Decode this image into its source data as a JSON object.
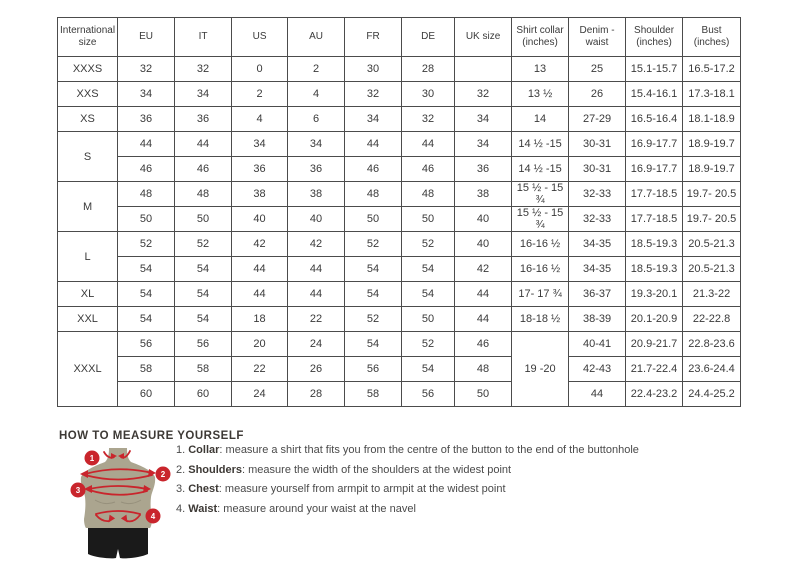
{
  "colors": {
    "accent_red": "#c9252c",
    "torso": "#aba58f",
    "shorts": "#1a1a1a",
    "table_border": "#4c4c4c",
    "text": "#3a3a3a"
  },
  "size_table": {
    "headers": [
      "International size",
      "EU",
      "IT",
      "US",
      "AU",
      "FR",
      "DE",
      "UK size",
      "Shirt collar (inches)",
      "Denim - waist",
      "Shoulder (inches)",
      "Bust (inches)"
    ],
    "groups": [
      {
        "label": "XXXS",
        "rows": [
          [
            "32",
            "32",
            "0",
            "2",
            "30",
            "28",
            "",
            "13",
            "25",
            "15.1-15.7",
            "16.5-17.2"
          ]
        ]
      },
      {
        "label": "XXS",
        "rows": [
          [
            "34",
            "34",
            "2",
            "4",
            "32",
            "30",
            "32",
            "13 ½",
            "26",
            "15.4-16.1",
            "17.3-18.1"
          ]
        ]
      },
      {
        "label": "XS",
        "rows": [
          [
            "36",
            "36",
            "4",
            "6",
            "34",
            "32",
            "34",
            "14",
            "27-29",
            "16.5-16.4",
            "18.1-18.9"
          ]
        ]
      },
      {
        "label": "S",
        "rows": [
          [
            "44",
            "44",
            "34",
            "34",
            "44",
            "44",
            "34",
            "14 ½ -15",
            "30-31",
            "16.9-17.7",
            "18.9-19.7"
          ],
          [
            "46",
            "46",
            "36",
            "36",
            "46",
            "46",
            "36",
            "14 ½ -15",
            "30-31",
            "16.9-17.7",
            "18.9-19.7"
          ]
        ]
      },
      {
        "label": "M",
        "rows": [
          [
            "48",
            "48",
            "38",
            "38",
            "48",
            "48",
            "38",
            "15 ½ - 15 ¾",
            "32-33",
            "17.7-18.5",
            "19.7- 20.5"
          ],
          [
            "50",
            "50",
            "40",
            "40",
            "50",
            "50",
            "40",
            "15 ½ - 15 ¾",
            "32-33",
            "17.7-18.5",
            "19.7- 20.5"
          ]
        ]
      },
      {
        "label": "L",
        "rows": [
          [
            "52",
            "52",
            "42",
            "42",
            "52",
            "52",
            "40",
            "16-16 ½",
            "34-35",
            "18.5-19.3",
            "20.5-21.3"
          ],
          [
            "54",
            "54",
            "44",
            "44",
            "54",
            "54",
            "42",
            "16-16 ½",
            "34-35",
            "18.5-19.3",
            "20.5-21.3"
          ]
        ]
      },
      {
        "label": "XL",
        "rows": [
          [
            "54",
            "54",
            "44",
            "44",
            "54",
            "54",
            "44",
            "17- 17 ¾",
            "36-37",
            "19.3-20.1",
            "21.3-22"
          ]
        ]
      },
      {
        "label": "XXL",
        "rows": [
          [
            "54",
            "54",
            "18",
            "22",
            "52",
            "50",
            "44",
            "18-18 ½",
            "38-39",
            "20.1-20.9",
            "22-22.8"
          ]
        ]
      },
      {
        "label": "XXXL",
        "collar": "19 -20",
        "rows": [
          [
            "56",
            "56",
            "20",
            "24",
            "54",
            "52",
            "46",
            "40-41",
            "20.9-21.7",
            "22.8-23.6"
          ],
          [
            "58",
            "58",
            "22",
            "26",
            "56",
            "54",
            "48",
            "42-43",
            "21.7-22.4",
            "23.6-24.4"
          ],
          [
            "60",
            "60",
            "24",
            "28",
            "58",
            "56",
            "50",
            "44",
            "22.4-23.2",
            "24.4-25.2"
          ]
        ]
      }
    ]
  },
  "measure": {
    "title": "HOW TO MEASURE YOURSELF",
    "steps": [
      {
        "num": "1.",
        "label": "Collar",
        "text": "measure a shirt that fits you from the centre of the button to the end of the buttonhole"
      },
      {
        "num": "2.",
        "label": "Shoulders",
        "text": "measure the width of the shoulders at the widest point"
      },
      {
        "num": "3.",
        "label": "Chest",
        "text": "measure yourself from armpit to armpit at the widest point"
      },
      {
        "num": "4.",
        "label": "Waist",
        "text": "measure around your waist at the navel"
      }
    ],
    "figure_badges": [
      "1",
      "2",
      "3",
      "4"
    ]
  }
}
